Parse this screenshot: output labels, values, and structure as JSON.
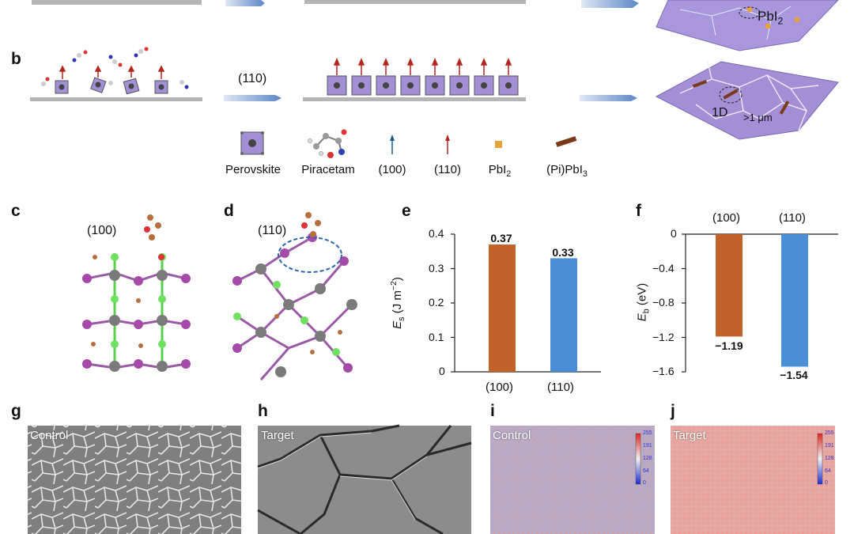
{
  "panel_labels": [
    "b",
    "c",
    "d",
    "e",
    "f",
    "g",
    "h",
    "i",
    "j"
  ],
  "row_a": {
    "pbi2_label": "PbI",
    "pbi2_sub": "2"
  },
  "row_b": {
    "orientation_label": "(110)",
    "grain_label": "1D",
    "size_label": ">1 μm"
  },
  "legend": {
    "perovskite": "Perovskite",
    "piracetam": "Piracetam",
    "arrow_100": "(100)",
    "arrow_110": "(110)",
    "pbi2": "PbI",
    "pbi2_sub": "2",
    "pipbi3_pre": "(Pi)PbI",
    "pipbi3_sub": "3"
  },
  "panel_c": {
    "facet_label": "(100)"
  },
  "panel_d": {
    "facet_label": "(110)"
  },
  "colors": {
    "orange_bar": "#c0622a",
    "blue_bar": "#4a8fd6",
    "perovskite": "#a38fd6",
    "arrow_red": "#b3261e",
    "arrow_blue": "#1f5a8a"
  },
  "chart_data": [
    {
      "type": "bar",
      "panel": "e",
      "categories": [
        "(100)",
        "(110)"
      ],
      "values": [
        0.37,
        0.33
      ],
      "value_labels": [
        "0.37",
        "0.33"
      ],
      "ylabel_main": "E",
      "ylabel_sub": "s",
      "ylabel_unit_pre": " (J m",
      "ylabel_unit_sup": "−2",
      "ylabel_unit_post": ")",
      "ylim": [
        0,
        0.4
      ],
      "yticks": [
        0,
        0.1,
        0.2,
        0.3,
        0.4
      ],
      "ytick_labels": [
        "0",
        "0.1",
        "0.2",
        "0.3",
        "0.4"
      ]
    },
    {
      "type": "bar",
      "panel": "f",
      "categories": [
        "(100)",
        "(110)"
      ],
      "values": [
        -1.19,
        -1.54
      ],
      "value_labels": [
        "−1.19",
        "−1.54"
      ],
      "ylabel_main": "E",
      "ylabel_sub": "b",
      "ylabel_unit": " (eV)",
      "ylim": [
        -1.6,
        0
      ],
      "yticks": [
        0,
        -0.4,
        -0.8,
        -1.2,
        -1.6
      ],
      "ytick_labels": [
        "0",
        "−0.4",
        "−0.8",
        "−1.2",
        "−1.6"
      ]
    }
  ],
  "panel_g": {
    "tag": "Control"
  },
  "panel_h": {
    "tag": "Target"
  },
  "panel_i": {
    "tag": "Control",
    "scale": [
      "255",
      "191",
      "128",
      "64",
      "0"
    ]
  },
  "panel_j": {
    "tag": "Target",
    "scale": [
      "255",
      "191",
      "128",
      "64",
      "0"
    ]
  }
}
